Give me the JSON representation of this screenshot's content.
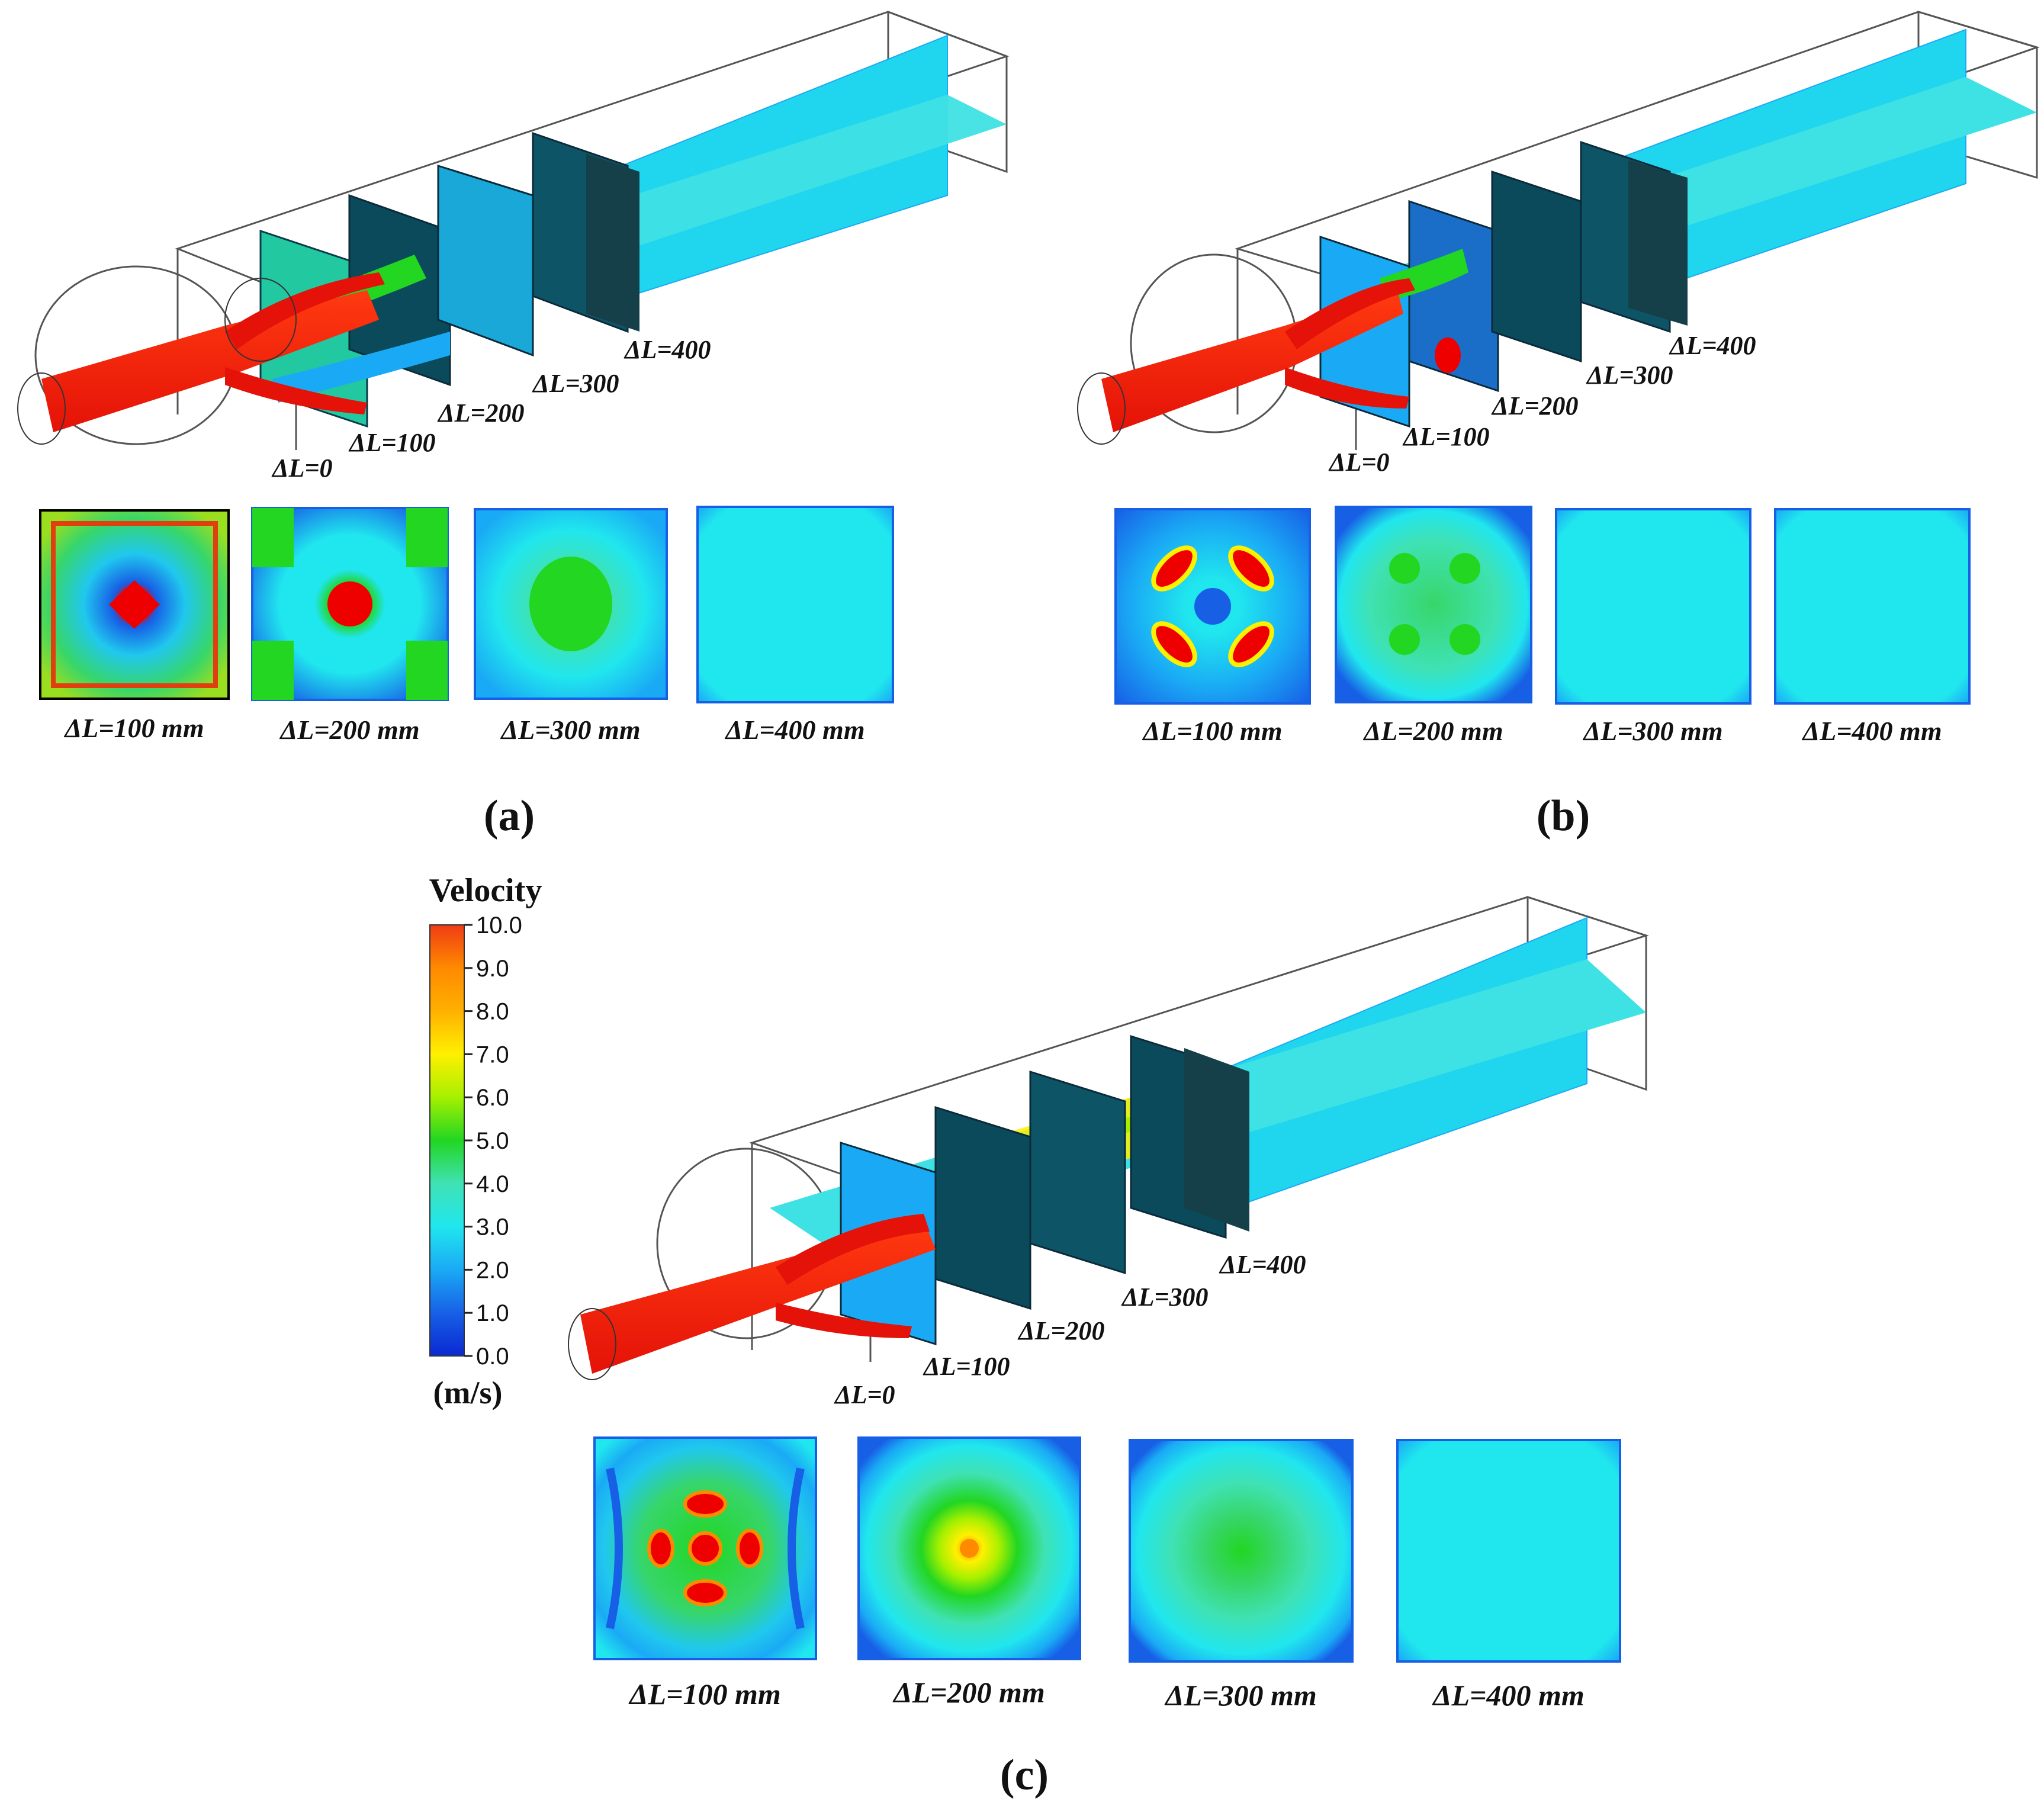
{
  "panels": [
    {
      "id": "a",
      "caption": "(a)",
      "stations": [
        "ΔL=0",
        "ΔL=100",
        "ΔL=200",
        "ΔL=300",
        "ΔL=400"
      ],
      "sections": [
        "ΔL=100 mm",
        "ΔL=200 mm",
        "ΔL=300 mm",
        "ΔL=400 mm"
      ]
    },
    {
      "id": "b",
      "caption": "(b)",
      "stations": [
        "ΔL=0",
        "ΔL=100",
        "ΔL=200",
        "ΔL=300",
        "ΔL=400"
      ],
      "sections": [
        "ΔL=100 mm",
        "ΔL=200 mm",
        "ΔL=300 mm",
        "ΔL=400 mm"
      ]
    },
    {
      "id": "c",
      "caption": "(c)",
      "stations": [
        "ΔL=0",
        "ΔL=100",
        "ΔL=200",
        "ΔL=300",
        "ΔL=400"
      ],
      "sections": [
        "ΔL=100 mm",
        "ΔL=200 mm",
        "ΔL=300 mm",
        "ΔL=400 mm"
      ]
    }
  ],
  "legend": {
    "title": "Velocity",
    "unit": "(m/s)",
    "ticks": [
      "10.0",
      "9.0",
      "8.0",
      "7.0",
      "6.0",
      "5.0",
      "4.0",
      "3.0",
      "2.0",
      "1.0",
      "0.0"
    ],
    "colors": [
      "#f03c14",
      "#ff8a00",
      "#ffb000",
      "#fff000",
      "#a6f000",
      "#22d622",
      "#37d66a",
      "#3fe2b4",
      "#20e6ee",
      "#1aaaf5",
      "#1760e6",
      "#0a28d2"
    ]
  }
}
